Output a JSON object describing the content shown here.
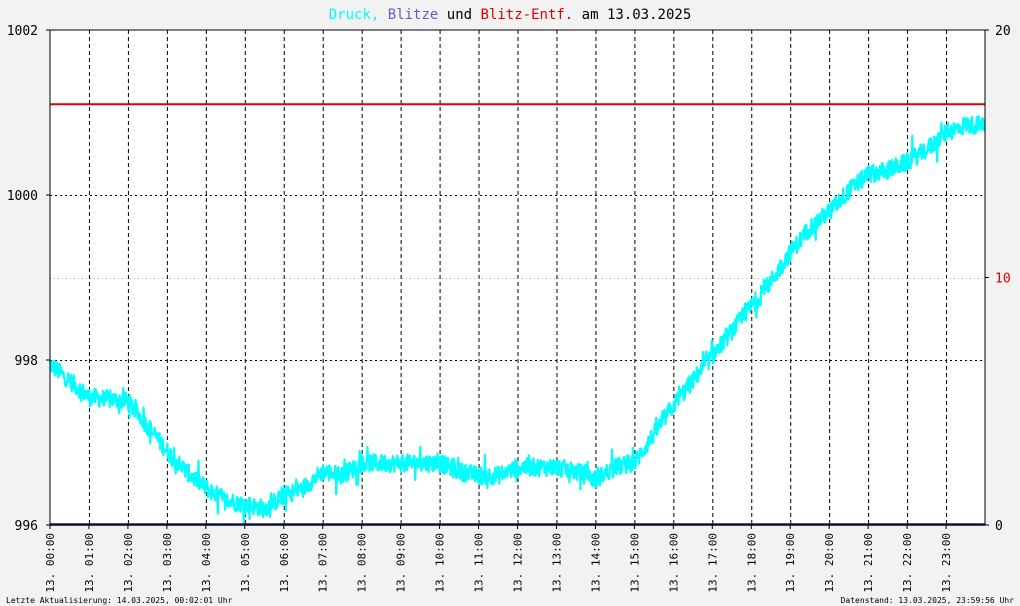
{
  "chart_data": {
    "type": "line",
    "title_parts": {
      "druck": "Druck,",
      "blitze": "Blitze",
      "und": "und",
      "blitz_entf": "Blitz-Entf.",
      "am": "am 13.03.2025"
    },
    "colors": {
      "druck": "#00ffff",
      "blitze": "#6a5acd",
      "blitz_entf": "#e00000",
      "background": "#ffffff",
      "grid": "#000000",
      "page": "#f2f2f2"
    },
    "left_axis": {
      "ylim": [
        996,
        1002
      ],
      "ticks": [
        "996",
        "998",
        "1000",
        "1002"
      ]
    },
    "right_axis": {
      "ylim": [
        0,
        20
      ],
      "ticks": [
        "0",
        "10",
        "20"
      ]
    },
    "x_range": [
      "13.03.2025 00:00",
      "14.03.2025 00:00"
    ],
    "x_ticks": [
      "13. 00:00",
      "13. 01:00",
      "13. 02:00",
      "13. 03:00",
      "13. 04:00",
      "13. 05:00",
      "13. 06:00",
      "13. 07:00",
      "13. 08:00",
      "13. 09:00",
      "13. 10:00",
      "13. 11:00",
      "13. 12:00",
      "13. 13:00",
      "13. 14:00",
      "13. 15:00",
      "13. 16:00",
      "13. 17:00",
      "13. 18:00",
      "13. 19:00",
      "13. 20:00",
      "13. 21:00",
      "13. 22:00",
      "13. 23:00"
    ],
    "series": [
      {
        "name": "Druck",
        "axis": "left",
        "x": [
          "00:00",
          "00:30",
          "01:00",
          "02:00",
          "02:30",
          "03:00",
          "03:30",
          "04:00",
          "04:30",
          "05:00",
          "05:30",
          "06:00",
          "06:30",
          "07:00",
          "07:30",
          "08:00",
          "09:00",
          "10:00",
          "10:30",
          "11:00",
          "11:30",
          "12:00",
          "13:00",
          "13:30",
          "14:00",
          "14:30",
          "15:00",
          "15:30",
          "16:00",
          "16:30",
          "17:00",
          "17:30",
          "18:00",
          "18:30",
          "19:00",
          "19:30",
          "20:00",
          "20:30",
          "21:00",
          "21:30",
          "22:00",
          "22:30",
          "23:00",
          "23:30",
          "23:59"
        ],
        "values": [
          997.95,
          997.75,
          997.55,
          997.5,
          997.2,
          996.9,
          996.65,
          996.45,
          996.3,
          996.25,
          996.2,
          996.35,
          996.45,
          996.65,
          996.6,
          996.75,
          996.75,
          996.75,
          996.65,
          996.6,
          996.6,
          996.7,
          996.7,
          996.65,
          996.55,
          996.7,
          996.75,
          997.1,
          997.45,
          997.75,
          998.05,
          998.35,
          998.65,
          998.95,
          999.3,
          999.6,
          999.8,
          1000.05,
          1000.25,
          1000.3,
          1000.4,
          1000.55,
          1000.75,
          1000.85,
          1000.85
        ]
      },
      {
        "name": "Blitz-Entf.",
        "axis": "right",
        "value": 17
      },
      {
        "name": "Blitze",
        "axis": "right",
        "value": 0
      }
    ],
    "grid": true
  },
  "footer": {
    "left": "Letzte Aktualisierung: 14.03.2025, 00:02:01 Uhr",
    "right": "Datenstand: 13.03.2025, 23:59:56 Uhr"
  }
}
